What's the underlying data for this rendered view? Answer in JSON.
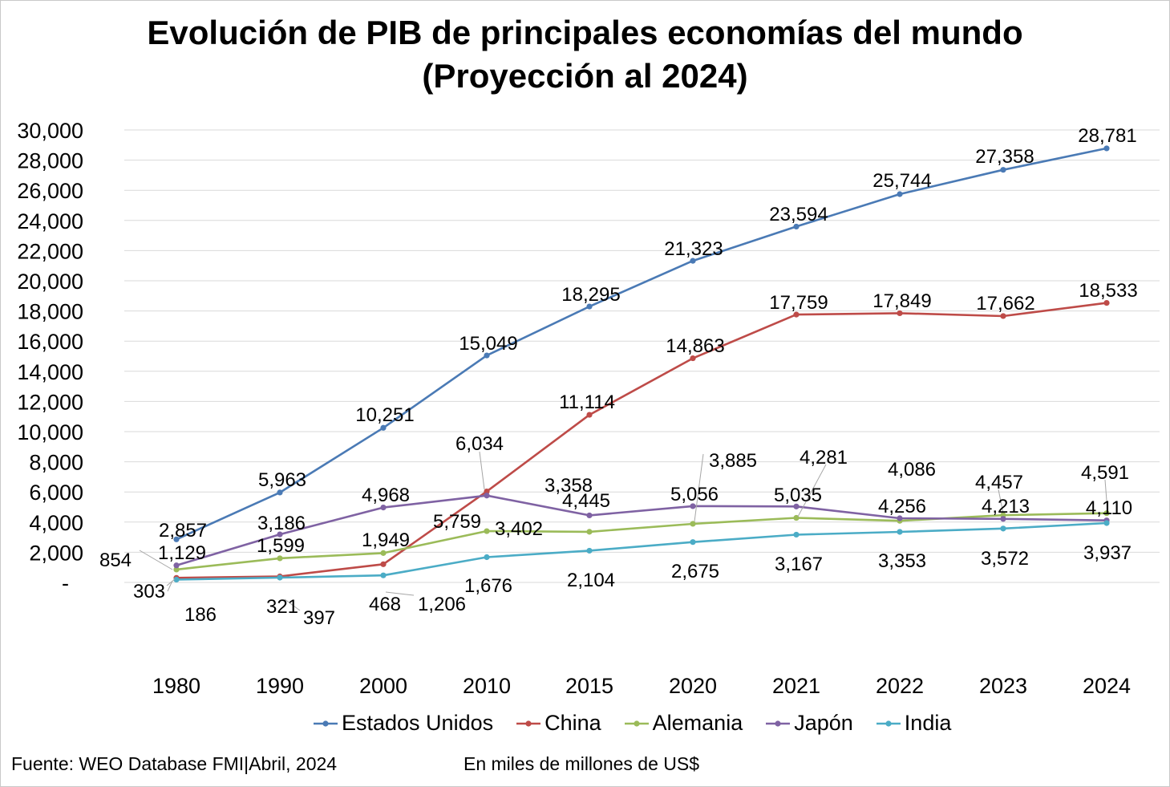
{
  "chart_data": {
    "type": "line",
    "title": "Evolución de PIB de principales economías del mundo",
    "subtitle": "(Proyección al 2024)",
    "categories": [
      "1980",
      "1990",
      "2000",
      "2010",
      "2015",
      "2020",
      "2021",
      "2022",
      "2023",
      "2024"
    ],
    "ylim": [
      0,
      30000
    ],
    "yticks": [
      0,
      2000,
      4000,
      6000,
      8000,
      10000,
      12000,
      14000,
      16000,
      18000,
      20000,
      22000,
      24000,
      26000,
      28000,
      30000
    ],
    "ytick_labels": [
      "-",
      "2,000",
      "4,000",
      "6,000",
      "8,000",
      "10,000",
      "12,000",
      "14,000",
      "16,000",
      "18,000",
      "20,000",
      "22,000",
      "24,000",
      "26,000",
      "28,000",
      "30,000"
    ],
    "grid": true,
    "legend_position": "bottom",
    "series": [
      {
        "name": "Estados Unidos",
        "color": "#4a7ab5",
        "values": [
          2857,
          5963,
          10251,
          15049,
          18295,
          21323,
          23594,
          25744,
          27358,
          28781
        ],
        "labels": [
          "2,857",
          "5,963",
          "10,251",
          "15,049",
          "18,295",
          "21,323",
          "23,594",
          "25,744",
          "27,358",
          "28,781"
        ]
      },
      {
        "name": "China",
        "color": "#be4b48",
        "values": [
          303,
          397,
          1206,
          6034,
          11114,
          14863,
          17759,
          17849,
          17662,
          18533
        ],
        "labels": [
          "303",
          "397",
          "1,206",
          "6,034",
          "11,114",
          "14,863",
          "17,759",
          "17,849",
          "17,662",
          "18,533"
        ]
      },
      {
        "name": "Alemania",
        "color": "#9bbb59",
        "values": [
          854,
          1599,
          1949,
          3402,
          3358,
          3885,
          4281,
          4086,
          4457,
          4591
        ],
        "labels": [
          "854",
          "1,599",
          "1,949",
          "3,402",
          "3,358",
          "3,885",
          "4,281",
          "4,086",
          "4,457",
          "4,591"
        ]
      },
      {
        "name": "Japón",
        "color": "#7f62a3",
        "values": [
          1129,
          3186,
          4968,
          5759,
          4445,
          5056,
          5035,
          4256,
          4213,
          4110
        ],
        "labels": [
          "1,129",
          "3,186",
          "4,968",
          "5,759",
          "4,445",
          "5,056",
          "5,035",
          "4,256",
          "4,213",
          "4,110"
        ]
      },
      {
        "name": "India",
        "color": "#4bacc6",
        "values": [
          186,
          321,
          468,
          1676,
          2104,
          2675,
          3167,
          3353,
          3572,
          3937
        ],
        "labels": [
          "186",
          "321",
          "468",
          "1,676",
          "2,104",
          "2,675",
          "3,167",
          "3,353",
          "3,572",
          "3,937"
        ]
      }
    ]
  },
  "footer": {
    "source": "Fuente: WEO Database FMI|Abril, 2024",
    "unit": "En miles de millones de US$"
  }
}
